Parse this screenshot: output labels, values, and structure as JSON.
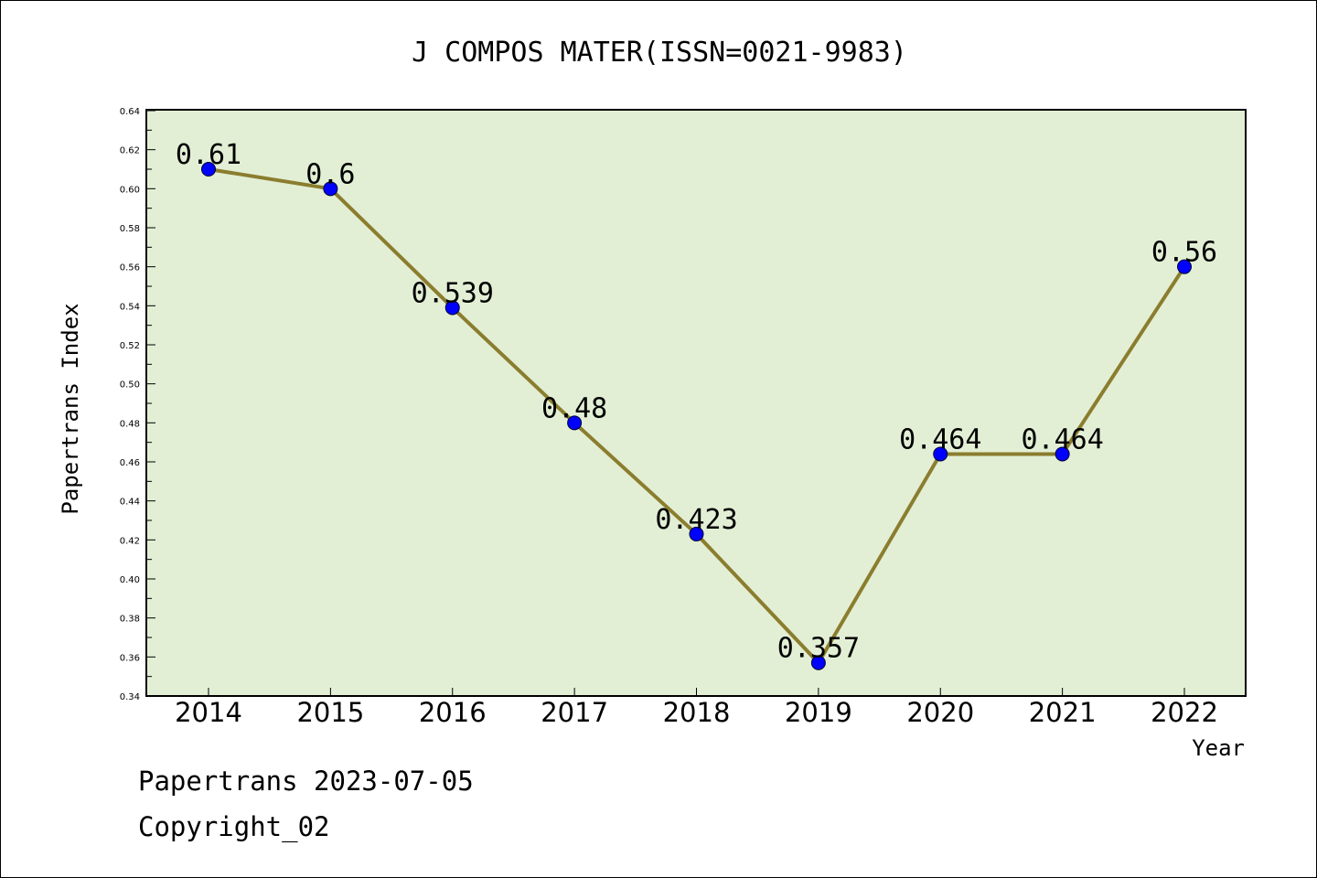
{
  "chart_data": {
    "type": "line",
    "title": "J COMPOS MATER(ISSN=0021-9983)",
    "xlabel": "Year",
    "ylabel": "Papertrans Index",
    "categories": [
      "2014",
      "2015",
      "2016",
      "2017",
      "2018",
      "2019",
      "2020",
      "2021",
      "2022"
    ],
    "series": [
      {
        "values": [
          0.61,
          0.6,
          0.539,
          0.48,
          0.423,
          0.357,
          0.464,
          0.464,
          0.56
        ],
        "data_labels": [
          "0.61",
          "0.6",
          "0.539",
          "0.48",
          "0.423",
          "0.357",
          "0.464",
          "0.464",
          "0.56"
        ],
        "line_color": "#8B7D2E",
        "marker_color": "#0000FF"
      }
    ],
    "ylim": [
      0.34,
      0.64
    ],
    "yticks": [
      "0.34",
      "0.36",
      "0.38",
      "0.40",
      "0.42",
      "0.44",
      "0.46",
      "0.48",
      "0.50",
      "0.52",
      "0.54",
      "0.56",
      "0.58",
      "0.60",
      "0.62",
      "0.64"
    ],
    "plot_background": "#E2EFD5",
    "grid": false,
    "legend": "none"
  },
  "footer": {
    "date_line": "Papertrans 2023-07-05",
    "copyright_line": "Copyright_02"
  }
}
